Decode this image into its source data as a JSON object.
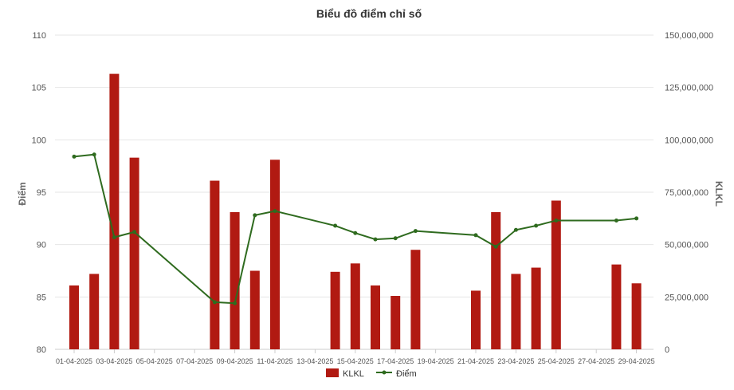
{
  "chart_data": {
    "type": "bar+line",
    "title": "Biểu đồ điểm chỉ số",
    "x_tick_labels": [
      "01-04-2025",
      "03-04-2025",
      "05-04-2025",
      "07-04-2025",
      "09-04-2025",
      "11-04-2025",
      "13-04-2025",
      "15-04-2025",
      "17-04-2025",
      "19-04-2025",
      "21-04-2025",
      "23-04-2025",
      "25-04-2025",
      "27-04-2025",
      "29-04-2025"
    ],
    "y_left": {
      "label": "Điểm",
      "min": 80,
      "max": 110,
      "ticks": [
        "80",
        "85",
        "90",
        "95",
        "100",
        "105",
        "110"
      ]
    },
    "y_right": {
      "label": "KLKL",
      "min": 0,
      "max": 150000000,
      "ticks": [
        "0",
        "25,000,000",
        "50,000,000",
        "75,000,000",
        "100,000,000",
        "125,000,000",
        "150,000,000"
      ]
    },
    "series": [
      {
        "name": "KLKL",
        "type": "bar",
        "axis": "right",
        "color": "#b11a12",
        "points": [
          [
            "01-04-2025",
            30500000
          ],
          [
            "02-04-2025",
            36000000
          ],
          [
            "03-04-2025",
            131500000
          ],
          [
            "04-04-2025",
            91500000
          ],
          [
            "08-04-2025",
            80500000
          ],
          [
            "09-04-2025",
            65500000
          ],
          [
            "10-04-2025",
            37500000
          ],
          [
            "11-04-2025",
            90500000
          ],
          [
            "14-04-2025",
            37000000
          ],
          [
            "15-04-2025",
            41000000
          ],
          [
            "16-04-2025",
            30500000
          ],
          [
            "17-04-2025",
            25500000
          ],
          [
            "18-04-2025",
            47500000
          ],
          [
            "21-04-2025",
            28000000
          ],
          [
            "22-04-2025",
            65500000
          ],
          [
            "23-04-2025",
            36000000
          ],
          [
            "24-04-2025",
            39000000
          ],
          [
            "25-04-2025",
            71000000
          ],
          [
            "28-04-2025",
            40500000
          ],
          [
            "29-04-2025",
            31500000
          ]
        ]
      },
      {
        "name": "Điểm",
        "type": "line",
        "axis": "left",
        "color": "#2f6b1f",
        "points": [
          [
            "01-04-2025",
            98.4
          ],
          [
            "02-04-2025",
            98.6
          ],
          [
            "03-04-2025",
            90.7
          ],
          [
            "04-04-2025",
            91.2
          ],
          [
            "08-04-2025",
            84.5
          ],
          [
            "09-04-2025",
            84.4
          ],
          [
            "10-04-2025",
            92.8
          ],
          [
            "11-04-2025",
            93.2
          ],
          [
            "14-04-2025",
            91.8
          ],
          [
            "15-04-2025",
            91.1
          ],
          [
            "16-04-2025",
            90.5
          ],
          [
            "17-04-2025",
            90.6
          ],
          [
            "18-04-2025",
            91.3
          ],
          [
            "21-04-2025",
            90.9
          ],
          [
            "22-04-2025",
            89.8
          ],
          [
            "23-04-2025",
            91.4
          ],
          [
            "24-04-2025",
            91.8
          ],
          [
            "25-04-2025",
            92.3
          ],
          [
            "28-04-2025",
            92.3
          ],
          [
            "29-04-2025",
            92.5
          ]
        ]
      }
    ],
    "grid": true,
    "legend": {
      "position": "bottom",
      "items": [
        "KLKL",
        "Điểm"
      ]
    }
  }
}
